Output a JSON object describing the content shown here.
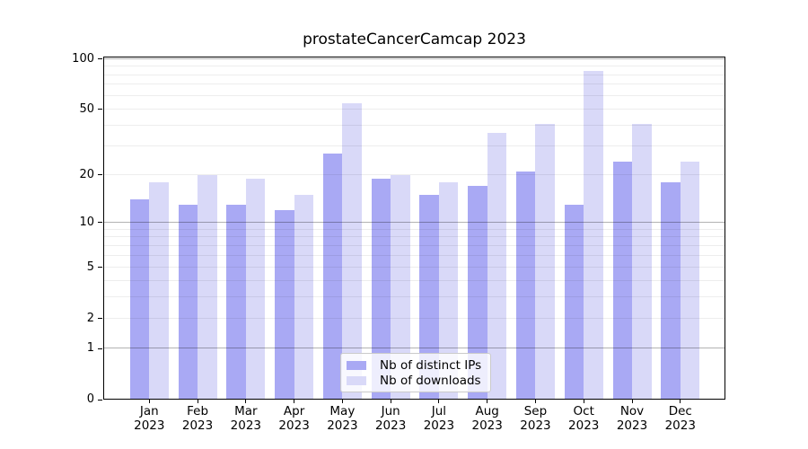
{
  "chart_data": {
    "type": "bar",
    "title": "prostateCancerCamcap 2023",
    "categories": [
      "Jan",
      "Feb",
      "Mar",
      "Apr",
      "May",
      "Jun",
      "Jul",
      "Aug",
      "Sep",
      "Oct",
      "Nov",
      "Dec"
    ],
    "year": "2023",
    "series": [
      {
        "name": "Nb of distinct IPs",
        "color": "#a9a9f4",
        "values": [
          14,
          13,
          13,
          12,
          27,
          19,
          15,
          17,
          21,
          13,
          24,
          18
        ]
      },
      {
        "name": "Nb of downloads",
        "color": "#d9d9f8",
        "values": [
          18,
          20,
          19,
          15,
          54,
          20,
          18,
          36,
          41,
          85,
          41,
          24
        ]
      }
    ],
    "yscale": "log1p",
    "ylim": [
      0,
      103
    ],
    "yticks": [
      0,
      1,
      2,
      5,
      10,
      20,
      50,
      100
    ],
    "major_gridlines": [
      1,
      10,
      100
    ],
    "minor_gridlines": [
      2,
      3,
      4,
      5,
      6,
      7,
      8,
      9,
      20,
      30,
      40,
      50,
      60,
      70,
      80,
      90
    ],
    "grid": true,
    "legend_position": "lower center",
    "colors": {
      "background": "#ffffff",
      "spine": "#000000"
    }
  }
}
